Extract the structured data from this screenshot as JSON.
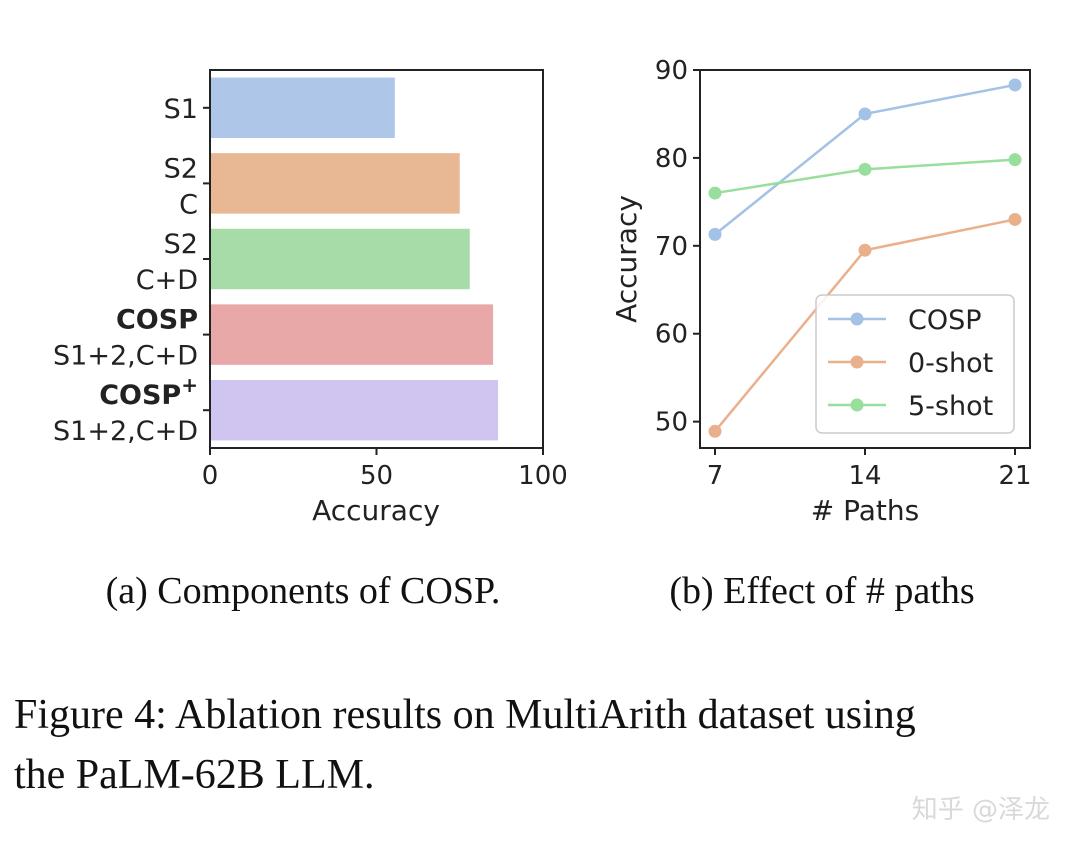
{
  "chart_data": [
    {
      "type": "bar",
      "orientation": "horizontal",
      "title": "",
      "xlabel": "Accuracy",
      "ylabel": "",
      "xlim": [
        0,
        100
      ],
      "xticks": [
        "0",
        "50",
        "100"
      ],
      "categories": [
        {
          "line1": "S1",
          "line2": "",
          "sup": "",
          "bold": false
        },
        {
          "line1": "S2",
          "line2": "C",
          "sup": "",
          "bold": false
        },
        {
          "line1": "S2",
          "line2": "C+D",
          "sup": "",
          "bold": false
        },
        {
          "line1": "COSP",
          "line2": "S1+2,C+D",
          "sup": "",
          "bold": true
        },
        {
          "line1": "COSP",
          "line2": "S1+2,C+D",
          "sup": "+",
          "bold": true
        }
      ],
      "values": [
        55.5,
        75,
        78,
        85,
        86.5
      ],
      "colors": [
        "#aec7e8",
        "#e8b894",
        "#a7dba8",
        "#e8a8a8",
        "#d0c4f0"
      ]
    },
    {
      "type": "line",
      "title": "",
      "xlabel": "# Paths",
      "ylabel": "Accuracy",
      "x": [
        7,
        14,
        21
      ],
      "xticks": [
        "7",
        "14",
        "21"
      ],
      "ylim": [
        47,
        90
      ],
      "yticks": [
        "50",
        "60",
        "70",
        "80",
        "90"
      ],
      "legend_position": "lower-right",
      "series": [
        {
          "name": "COSP",
          "values": [
            71.3,
            85,
            88.3
          ],
          "color": "#a3c2e6"
        },
        {
          "name": "0-shot",
          "values": [
            48.9,
            69.5,
            73
          ],
          "color": "#eab08c"
        },
        {
          "name": "5-shot",
          "values": [
            76,
            78.7,
            79.8
          ],
          "color": "#98de9c"
        }
      ]
    }
  ],
  "subcaptions": [
    "(a) Components of COSP.",
    "(b) Effect of # paths"
  ],
  "figure_caption": {
    "line1": "Figure 4: Ablation results on MultiArith dataset using",
    "line2": "the PaLM-62B LLM."
  },
  "watermark": "知乎 @泽龙"
}
